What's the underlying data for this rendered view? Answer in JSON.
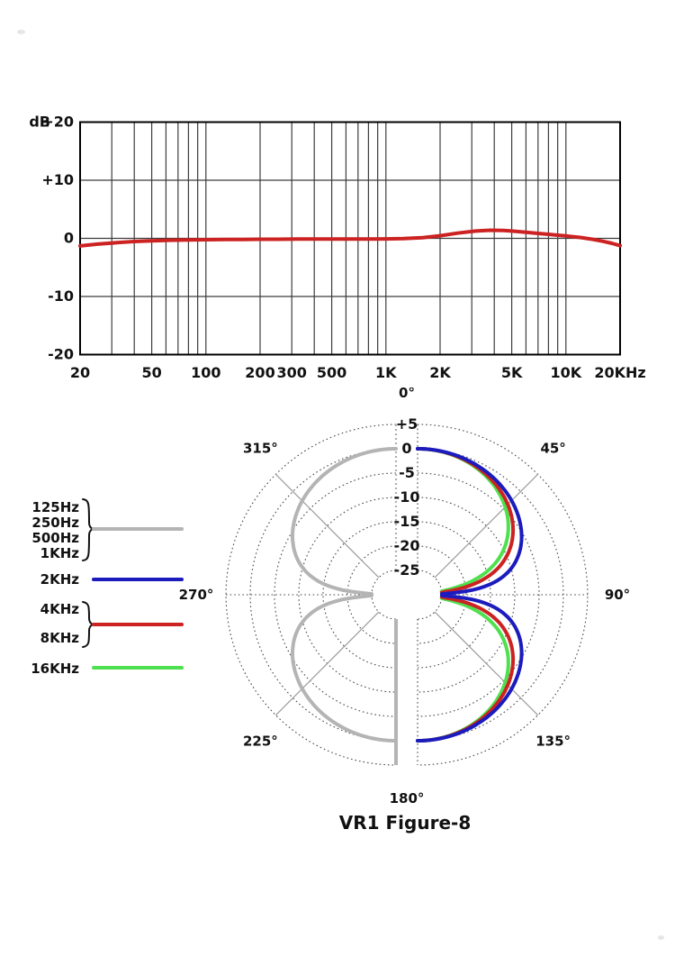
{
  "caption": "VR1 Figure-8",
  "colors": {
    "low_freq_gray": "#b4b4b4",
    "mid_blue": "#1b1bbe",
    "high_red": "#cc2222",
    "top_green": "#4ee04e",
    "grid_dark": "#4a4a4a",
    "grid_light": "#9c9c9c",
    "artifact_gray": "#e6e6e6"
  },
  "legend": {
    "items": [
      {
        "labels": [
          "125Hz",
          "250Hz",
          "500Hz",
          "1KHz"
        ],
        "color": "#b4b4b4",
        "brace": true
      },
      {
        "labels": [
          "2KHz"
        ],
        "color": "#1b1bbe",
        "brace": false
      },
      {
        "labels": [
          "4KHz",
          "8KHz"
        ],
        "color": "#cc2222",
        "brace": true
      },
      {
        "labels": [
          "16KHz"
        ],
        "color": "#4ee04e",
        "brace": false
      }
    ]
  },
  "chart_data": [
    {
      "type": "line",
      "name": "frequency-response",
      "ylabel": "dB",
      "xscale": "log",
      "xlim": [
        20,
        20000
      ],
      "ylim": [
        -20,
        20
      ],
      "grid": true,
      "y_ticks": [
        {
          "db": 20,
          "label": "+20"
        },
        {
          "db": 10,
          "label": "+10"
        },
        {
          "db": 0,
          "label": "0"
        },
        {
          "db": -10,
          "label": "-10"
        },
        {
          "db": -20,
          "label": "-20"
        }
      ],
      "x_ticks": [
        {
          "f": 20,
          "label": "20"
        },
        {
          "f": 50,
          "label": "50"
        },
        {
          "f": 100,
          "label": "100"
        },
        {
          "f": 200,
          "label": "200"
        },
        {
          "f": 300,
          "label": "300"
        },
        {
          "f": 500,
          "label": "500"
        },
        {
          "f": 1000,
          "label": "1K"
        },
        {
          "f": 2000,
          "label": "2K"
        },
        {
          "f": 5000,
          "label": "5K"
        },
        {
          "f": 10000,
          "label": "10K"
        },
        {
          "f": 20000,
          "label": "20KHz"
        }
      ],
      "x_gridlines": [
        20,
        30,
        40,
        50,
        60,
        70,
        80,
        90,
        100,
        200,
        300,
        400,
        500,
        600,
        700,
        800,
        900,
        1000,
        2000,
        3000,
        4000,
        5000,
        6000,
        7000,
        8000,
        9000,
        10000,
        20000
      ],
      "series": [
        {
          "name": "response",
          "color": "#cc2222",
          "points": [
            [
              20,
              -1.3
            ],
            [
              25,
              -1.0
            ],
            [
              32,
              -0.75
            ],
            [
              40,
              -0.55
            ],
            [
              50,
              -0.42
            ],
            [
              63,
              -0.33
            ],
            [
              80,
              -0.27
            ],
            [
              100,
              -0.23
            ],
            [
              130,
              -0.2
            ],
            [
              160,
              -0.18
            ],
            [
              200,
              -0.16
            ],
            [
              250,
              -0.15
            ],
            [
              320,
              -0.13
            ],
            [
              400,
              -0.12
            ],
            [
              500,
              -0.12
            ],
            [
              630,
              -0.12
            ],
            [
              800,
              -0.12
            ],
            [
              1000,
              -0.1
            ],
            [
              1250,
              -0.05
            ],
            [
              1600,
              0.12
            ],
            [
              2000,
              0.45
            ],
            [
              2500,
              0.9
            ],
            [
              3150,
              1.25
            ],
            [
              3800,
              1.4
            ],
            [
              4500,
              1.35
            ],
            [
              5000,
              1.25
            ],
            [
              6000,
              1.05
            ],
            [
              7000,
              0.85
            ],
            [
              8000,
              0.7
            ],
            [
              9000,
              0.55
            ],
            [
              10000,
              0.42
            ],
            [
              12000,
              0.15
            ],
            [
              14000,
              -0.15
            ],
            [
              16000,
              -0.5
            ],
            [
              18000,
              -0.85
            ],
            [
              20000,
              -1.25
            ]
          ]
        }
      ]
    },
    {
      "type": "polar",
      "name": "polar-pattern",
      "title": "VR1 Figure-8",
      "pattern": "figure-8",
      "radial_unit": "dB",
      "radial_ticks": [
        {
          "db": 5,
          "label": "+5"
        },
        {
          "db": 0,
          "label": "0"
        },
        {
          "db": -5,
          "label": "-5"
        },
        {
          "db": -10,
          "label": "-10"
        },
        {
          "db": -15,
          "label": "-15"
        },
        {
          "db": -20,
          "label": "-20"
        },
        {
          "db": -25,
          "label": "-25"
        }
      ],
      "db_clip": -25,
      "angle_labels": [
        {
          "deg": 0,
          "label": "0°"
        },
        {
          "deg": 45,
          "label": "45°"
        },
        {
          "deg": 90,
          "label": "90°"
        },
        {
          "deg": 135,
          "label": "135°"
        },
        {
          "deg": 180,
          "label": "180°"
        },
        {
          "deg": 225,
          "label": "225°"
        },
        {
          "deg": 270,
          "label": "270°"
        },
        {
          "deg": 315,
          "label": "315°"
        }
      ],
      "series": [
        {
          "name": "125Hz-1KHz",
          "frequencies": [
            "125Hz",
            "250Hz",
            "500Hz",
            "1KHz"
          ],
          "color": "#b4b4b4",
          "half": "left",
          "exponent": 0.9,
          "db_at_0deg": 0,
          "db_at_45deg": -2.7
        },
        {
          "name": "16KHz",
          "frequencies": [
            "16KHz"
          ],
          "color": "#4ee04e",
          "half": "right",
          "exponent": 1.5,
          "db_at_0deg": 0,
          "db_at_45deg": -4.5
        },
        {
          "name": "4KHz-8KHz",
          "frequencies": [
            "4KHz",
            "8KHz"
          ],
          "color": "#cc2222",
          "half": "right",
          "exponent": 1.25,
          "db_at_0deg": 0,
          "db_at_45deg": -3.8
        },
        {
          "name": "2KHz",
          "frequencies": [
            "2KHz"
          ],
          "color": "#1b1bbe",
          "half": "right",
          "exponent": 0.88,
          "db_at_0deg": 0,
          "db_at_45deg": -2.6
        }
      ]
    }
  ]
}
